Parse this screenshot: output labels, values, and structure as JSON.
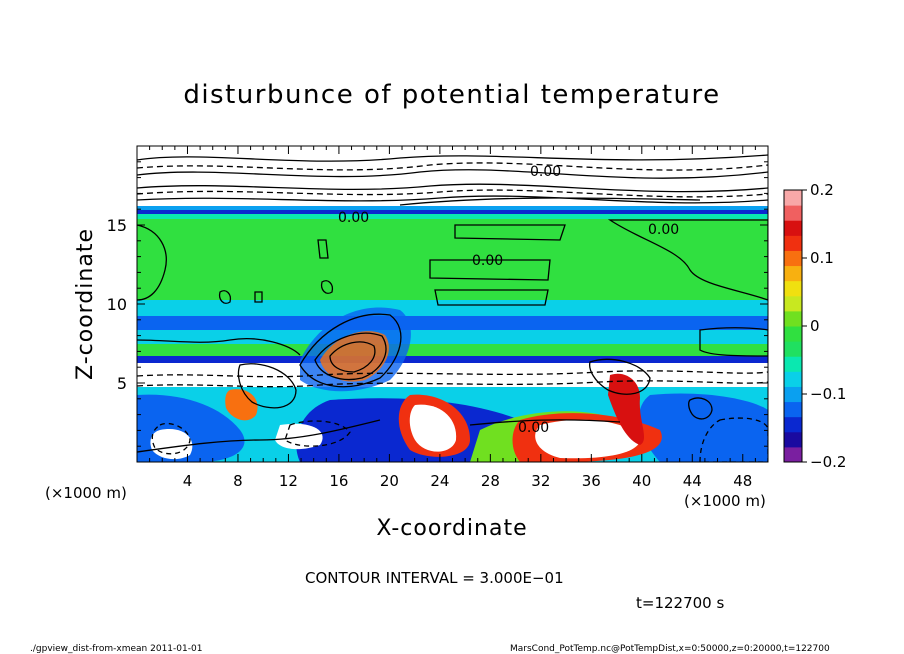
{
  "chart_data": {
    "type": "heatmap",
    "title": "disturbunce of potential temperature",
    "xlabel": "X-coordinate",
    "ylabel": "Z-coordinate",
    "x_unit_label": "(×1000 m)",
    "y_unit_label": "(×1000 m)",
    "xlim": [
      0,
      50
    ],
    "ylim": [
      0,
      20
    ],
    "x_ticks": [
      4,
      8,
      12,
      16,
      20,
      24,
      28,
      32,
      36,
      40,
      44,
      48
    ],
    "y_ticks": [
      5,
      10,
      15
    ],
    "colorbar": {
      "min": -0.2,
      "max": 0.2,
      "tick_labels": [
        "0.2",
        "0.1",
        "0",
        "−0.1",
        "−0.2"
      ],
      "tick_values": [
        0.2,
        0.1,
        0,
        -0.1,
        -0.2
      ],
      "colors": [
        "#7a1fa0",
        "#1a0aa0",
        "#0a28d0",
        "#0a64f0",
        "#0aa0f0",
        "#0ad0e8",
        "#0ae8b0",
        "#20e060",
        "#30e040",
        "#70e020",
        "#c8e820",
        "#f0e010",
        "#f8b010",
        "#f87010",
        "#f03010",
        "#d81010",
        "#f06060",
        "#f8a8a8"
      ]
    },
    "contour_labels": [
      "0.00",
      "0.00",
      "0.00",
      "0.00",
      "0.00"
    ],
    "contour_interval_text": "CONTOUR INTERVAL = 3.000E−01",
    "time_text": "t=122700 s"
  },
  "footer": {
    "left": "./gpview_dist-from-xmean  2011-01-01",
    "right": "MarsCond_PotTemp.nc@PotTempDist,x=0:50000,z=0:20000,t=122700"
  }
}
